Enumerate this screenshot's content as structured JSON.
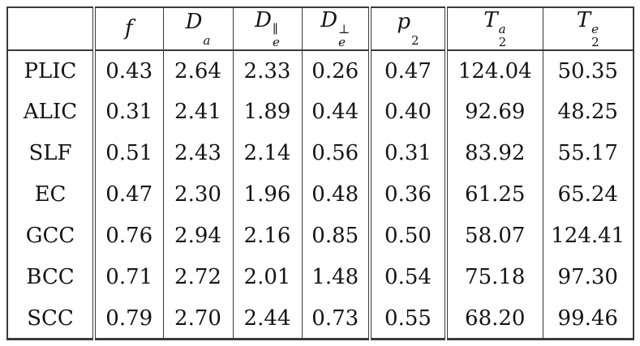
{
  "page": {
    "background": "#ffffff"
  },
  "table": {
    "border_color": "#3a3a3a",
    "text_color": "#141414",
    "columns": [
      {
        "key": "region",
        "base": "",
        "sub": "",
        "sup": ""
      },
      {
        "key": "f",
        "base": "f",
        "sub": "",
        "sup": ""
      },
      {
        "key": "D_a",
        "base": "D",
        "sub": "a",
        "sup": ""
      },
      {
        "key": "D_e_parallel",
        "base": "D",
        "sub": "e",
        "sup": "∥"
      },
      {
        "key": "D_e_perp",
        "base": "D",
        "sub": "e",
        "sup": "⊥"
      },
      {
        "key": "p_2",
        "base": "p",
        "sub": "2",
        "sup": ""
      },
      {
        "key": "T_2_a",
        "base": "T",
        "sub": "2",
        "sup": "a"
      },
      {
        "key": "T_2_e",
        "base": "T",
        "sub": "2",
        "sup": "e"
      }
    ],
    "rows": [
      {
        "label": "PLIC",
        "values": [
          "0.43",
          "2.64",
          "2.33",
          "0.26",
          "0.47",
          "124.04",
          "50.35"
        ]
      },
      {
        "label": "ALIC",
        "values": [
          "0.31",
          "2.41",
          "1.89",
          "0.44",
          "0.40",
          "92.69",
          "48.25"
        ]
      },
      {
        "label": "SLF",
        "values": [
          "0.51",
          "2.43",
          "2.14",
          "0.56",
          "0.31",
          "83.92",
          "55.17"
        ]
      },
      {
        "label": "EC",
        "values": [
          "0.47",
          "2.30",
          "1.96",
          "0.48",
          "0.36",
          "61.25",
          "65.24"
        ]
      },
      {
        "label": "GCC",
        "values": [
          "0.76",
          "2.94",
          "2.16",
          "0.85",
          "0.50",
          "58.07",
          "124.41"
        ]
      },
      {
        "label": "BCC",
        "values": [
          "0.71",
          "2.72",
          "2.01",
          "1.48",
          "0.54",
          "75.18",
          "97.30"
        ]
      },
      {
        "label": "SCC",
        "values": [
          "0.79",
          "2.70",
          "2.44",
          "0.73",
          "0.55",
          "68.20",
          "99.46"
        ]
      }
    ]
  },
  "chart_data": {
    "type": "table",
    "columns": [
      "",
      "f",
      "D_a",
      "D_e^parallel",
      "D_e^perp",
      "p_2",
      "T_2^a",
      "T_2^e"
    ],
    "rows": [
      [
        "PLIC",
        0.43,
        2.64,
        2.33,
        0.26,
        0.47,
        124.04,
        50.35
      ],
      [
        "ALIC",
        0.31,
        2.41,
        1.89,
        0.44,
        0.4,
        92.69,
        48.25
      ],
      [
        "SLF",
        0.51,
        2.43,
        2.14,
        0.56,
        0.31,
        83.92,
        55.17
      ],
      [
        "EC",
        0.47,
        2.3,
        1.96,
        0.48,
        0.36,
        61.25,
        65.24
      ],
      [
        "GCC",
        0.76,
        2.94,
        2.16,
        0.85,
        0.5,
        58.07,
        124.41
      ],
      [
        "BCC",
        0.71,
        2.72,
        2.01,
        1.48,
        0.54,
        75.18,
        97.3
      ],
      [
        "SCC",
        0.79,
        2.7,
        2.44,
        0.73,
        0.55,
        68.2,
        99.46
      ]
    ]
  }
}
